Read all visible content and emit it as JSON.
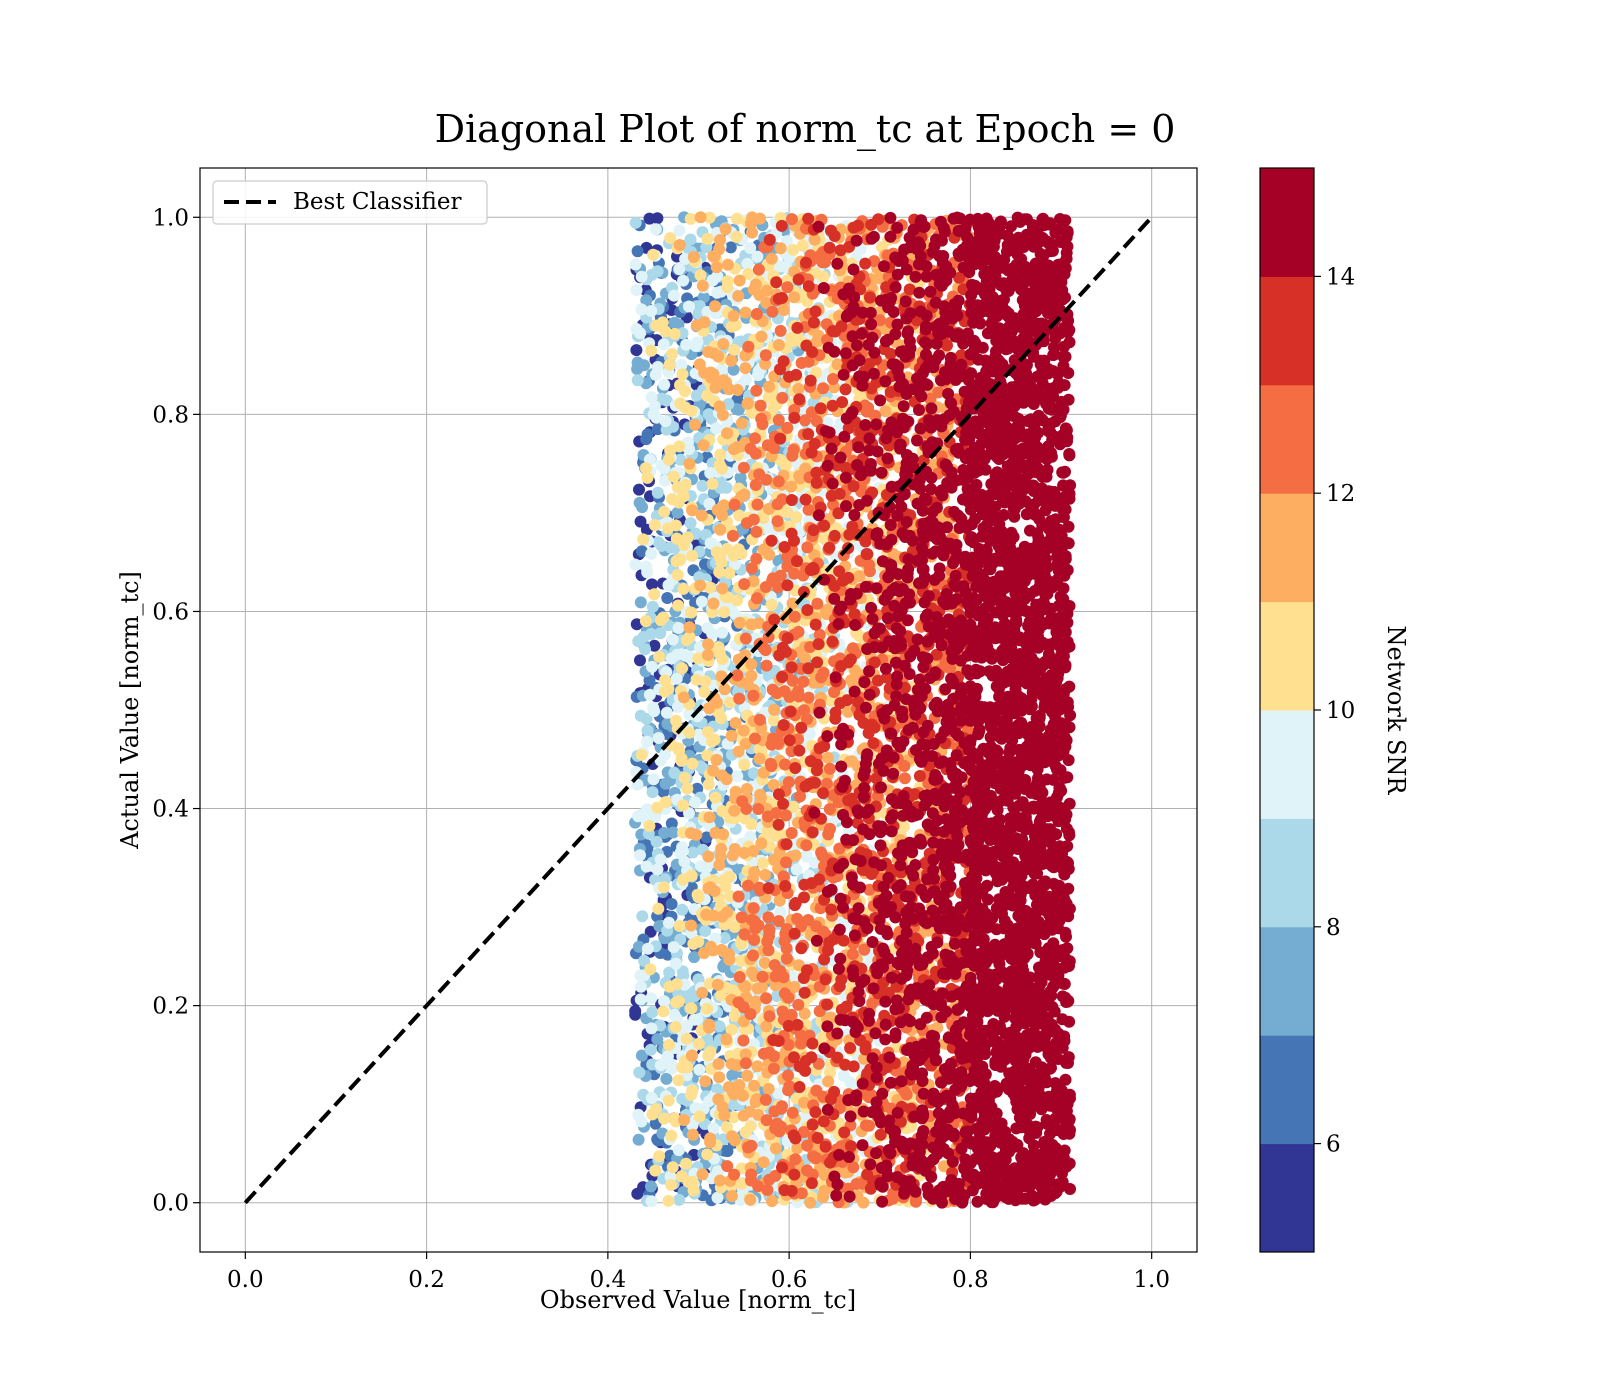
{
  "chart_data": {
    "type": "scatter",
    "title": "Diagonal Plot of norm_tc at Epoch = 0",
    "xlabel": "Observed Value [norm_tc]",
    "ylabel": "Actual Value [norm_tc]",
    "xlim": [
      -0.05,
      1.05
    ],
    "ylim": [
      -0.05,
      1.05
    ],
    "xticks": [
      "0.0",
      "0.2",
      "0.4",
      "0.6",
      "0.8",
      "1.0"
    ],
    "yticks": [
      "0.0",
      "0.2",
      "0.4",
      "0.6",
      "0.8",
      "1.0"
    ],
    "grid": true,
    "legend": {
      "placement": "upper-left",
      "entries": [
        {
          "label": "Best Classifier",
          "style": "dashed",
          "color": "#000000"
        }
      ]
    },
    "reference_line": {
      "x": [
        0.0,
        1.0
      ],
      "y": [
        0.0,
        1.0
      ],
      "style": "dashed",
      "color": "#000000"
    },
    "colorbar": {
      "label": "Network SNR",
      "range": [
        5,
        15
      ],
      "ticks": [
        "6",
        "8",
        "10",
        "12",
        "14"
      ],
      "colormap": "RdYlBu_r",
      "levels": [
        "#313695",
        "#4575b4",
        "#74add1",
        "#abd9e9",
        "#e0f3f8",
        "#fee090",
        "#fdae61",
        "#f46d43",
        "#d73027",
        "#a50026"
      ]
    },
    "scatter_distribution": {
      "x_range": [
        0.43,
        0.91
      ],
      "y_range": [
        0.0,
        1.0
      ],
      "snr_trend": "higher SNR toward larger observed values; nearly all points with observed value above 0.8 have SNR above 14",
      "n_points_rendered": 9000
    }
  }
}
